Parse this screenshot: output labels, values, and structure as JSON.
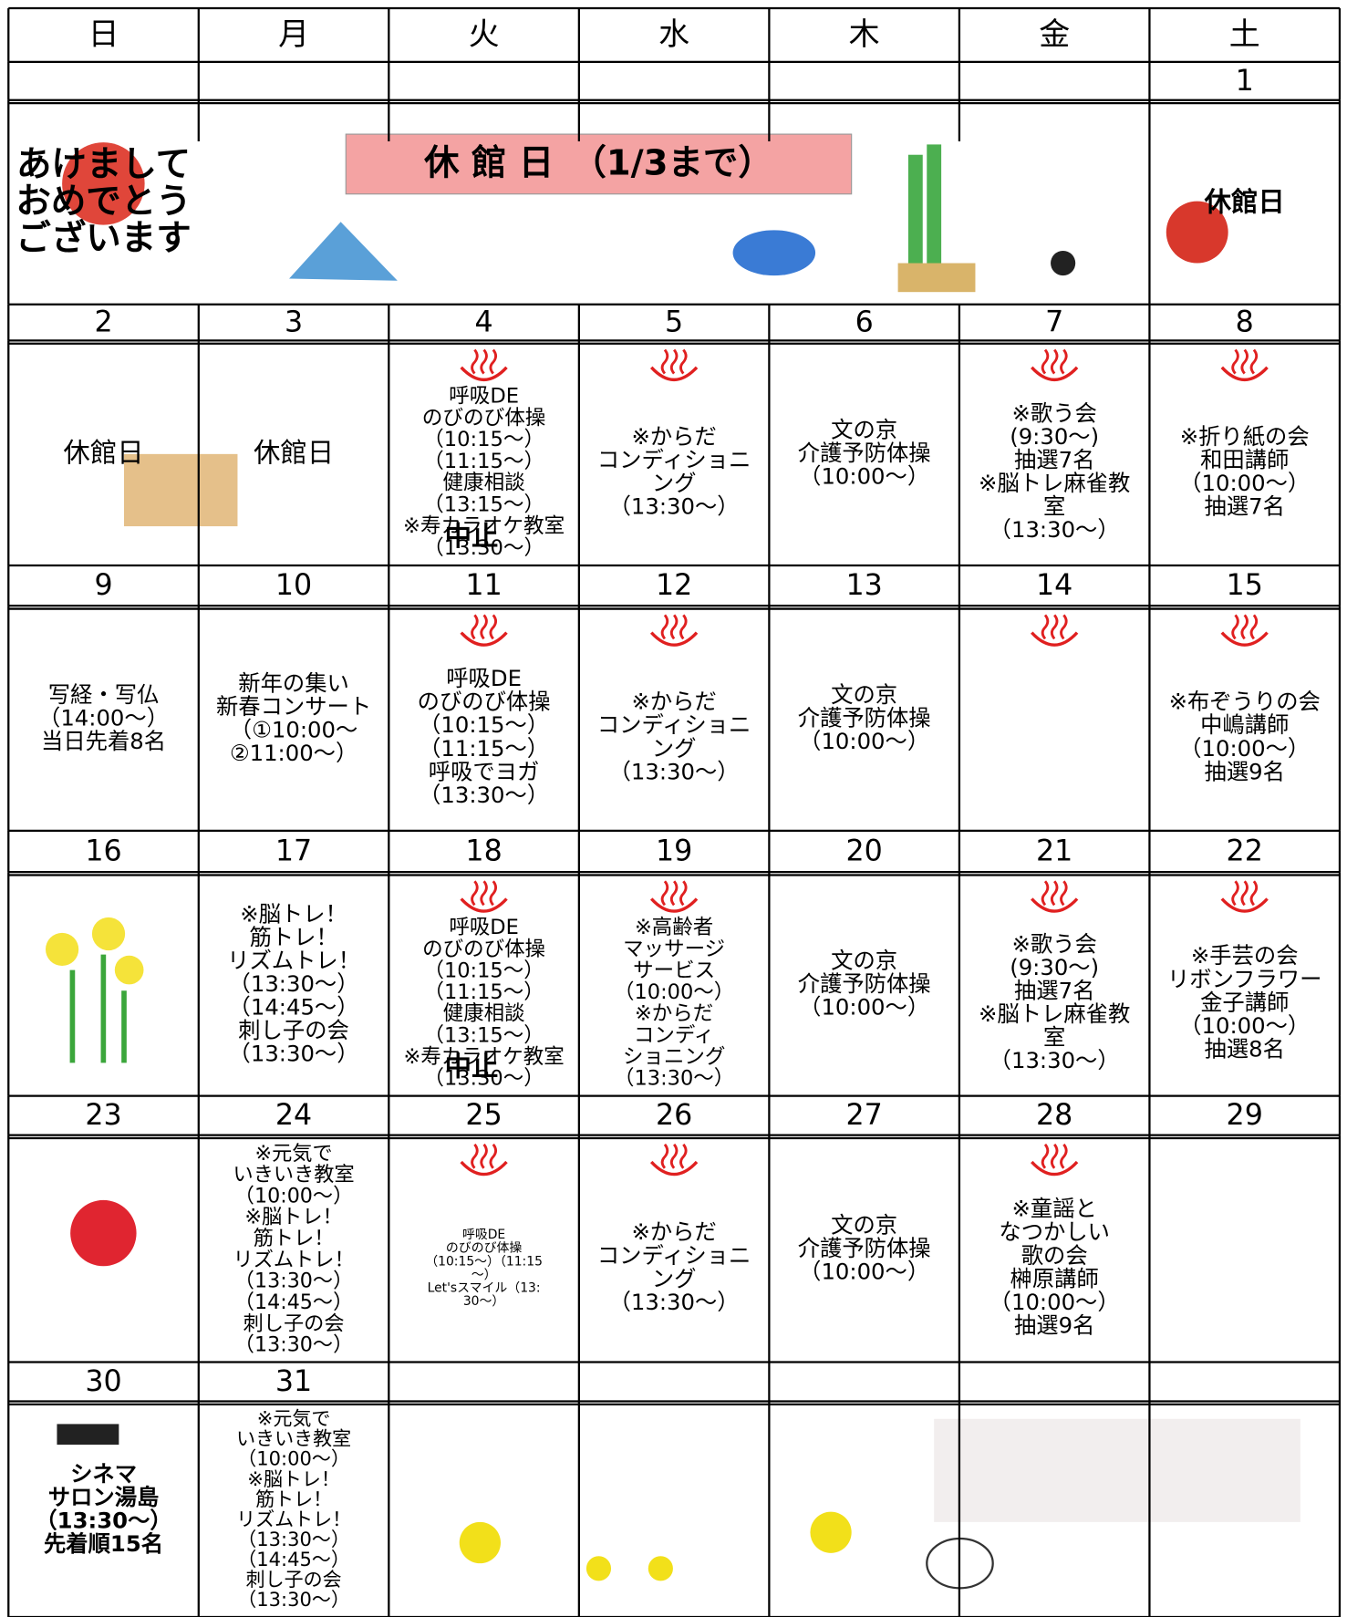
{
  "weekdays": [
    "日",
    "月",
    "火",
    "水",
    "木",
    "金",
    "土"
  ],
  "banner": "休 館 日　（1/3まで）",
  "weeks": [
    {
      "days": [
        {
          "lines": [
            "あけまして",
            "おめでとう",
            "ございます"
          ]
        },
        null,
        null,
        null,
        null,
        null,
        {
          "date": 1,
          "red": true,
          "lines": [
            "休館日"
          ]
        }
      ]
    },
    {
      "days": [
        {
          "date": 2,
          "red": true,
          "lines": [
            "休館日"
          ]
        },
        {
          "date": 3,
          "lines": [
            "休館日"
          ]
        },
        {
          "date": 4,
          "onsen": true,
          "cancel": "中止",
          "lines": [
            "呼吸DE",
            "のびのび体操",
            "（10:15～）",
            "（11:15～）",
            "健康相談",
            "（13:15～）",
            "※寿カラオケ教室",
            "（13:30～）"
          ]
        },
        {
          "date": 5,
          "onsen": true,
          "lines": [
            "※からだ",
            "コンディショニ",
            "ング",
            "（13:30～）"
          ]
        },
        {
          "date": 6,
          "lines": [
            "文の京",
            "介護予防体操",
            "（10:00～）"
          ]
        },
        {
          "date": 7,
          "onsen": true,
          "lines": [
            "※歌う会",
            "(9:30～)",
            "抽選7名",
            "※脳トレ麻雀教",
            "室",
            "（13:30～）"
          ]
        },
        {
          "date": 8,
          "onsen": true,
          "lines": [
            "※折り紙の会",
            "和田講師",
            "（10:00～）",
            {
              "text": "抽選7名",
              "color": "#ff0000"
            }
          ]
        }
      ]
    },
    {
      "days": [
        {
          "date": 9,
          "red": true,
          "lines": [
            "写経・写仏",
            "（14:00～）",
            "当日先着8名"
          ]
        },
        {
          "date": 10,
          "red": true,
          "lines": [
            "新年の集い",
            "新春コンサート",
            "（①10:00～",
            "②11:00～）"
          ]
        },
        {
          "date": 11,
          "onsen": true,
          "lines": [
            "呼吸DE",
            "のびのび体操",
            "（10:15～）",
            "（11:15～）",
            "呼吸でヨガ",
            "（13:30～）"
          ]
        },
        {
          "date": 12,
          "onsen": true,
          "lines": [
            "※からだ",
            "コンディショニ",
            "ング",
            "（13:30～）"
          ]
        },
        {
          "date": 13,
          "lines": [
            "文の京",
            "介護予防体操",
            "（10:00～）"
          ]
        },
        {
          "date": 14,
          "onsen": true,
          "lines": []
        },
        {
          "date": 15,
          "onsen": true,
          "lines": [
            "※布ぞうりの会",
            "中嶋講師",
            "（10:00～）",
            {
              "text": "抽選9名",
              "color": "#ff0000"
            }
          ]
        }
      ]
    },
    {
      "days": [
        {
          "date": 16,
          "red": true,
          "lines": []
        },
        {
          "date": 17,
          "lines": [
            "※脳トレ！",
            "筋トレ！",
            "リズムトレ！",
            "（13:30～）",
            "（14:45～）",
            "刺し子の会",
            "（13:30～）"
          ]
        },
        {
          "date": 18,
          "onsen": true,
          "cancel": "中止",
          "lines": [
            "呼吸DE",
            "のびのび体操",
            "（10:15～）",
            "（11:15～）",
            "健康相談",
            "（13:15～）",
            "※寿カラオケ教室",
            "（13:30～）"
          ]
        },
        {
          "date": 19,
          "onsen": true,
          "lines": [
            "※高齢者",
            "マッサージ",
            "サービス",
            "（10:00～）",
            "※からだ",
            "コンディ",
            "ショニング",
            "（13:30～）"
          ]
        },
        {
          "date": 20,
          "lines": [
            "文の京",
            "介護予防体操",
            "（10:00～）"
          ]
        },
        {
          "date": 21,
          "onsen": true,
          "lines": [
            "※歌う会",
            "(9:30～)",
            "抽選7名",
            "※脳トレ麻雀教",
            "室",
            "（13:30～）"
          ]
        },
        {
          "date": 22,
          "onsen": true,
          "lines": [
            "※手芸の会",
            "リボンフラワー",
            "金子講師",
            "（10:00～）",
            {
              "text": "抽選8名",
              "color": "#ff0000"
            }
          ]
        }
      ]
    },
    {
      "days": [
        {
          "date": 23,
          "red": true,
          "lines": []
        },
        {
          "date": 24,
          "lines": [
            "※元気で",
            "いきいき教室",
            "（10:00～）",
            "※脳トレ！",
            "筋トレ！",
            "リズムトレ！",
            "（13:30～）",
            "（14:45～）",
            "刺し子の会",
            "（13:30～）"
          ]
        },
        {
          "date": 25,
          "onsen": true,
          "lines": [
            "呼吸DE",
            "のびのび体操",
            "（10:15～）（11:15",
            "～）",
            "Let'sスマイル（13:",
            "30～）"
          ]
        },
        {
          "date": 26,
          "onsen": true,
          "lines": [
            "※からだ",
            "コンディショニ",
            "ング",
            "（13:30～）"
          ]
        },
        {
          "date": 27,
          "lines": [
            "文の京",
            "介護予防体操",
            "（10:00～）"
          ]
        },
        {
          "date": 28,
          "onsen": true,
          "lines": [
            "※童謡と",
            "なつかしい",
            "歌の会",
            "榊原講師",
            "（10:00～）",
            "抽選9名"
          ]
        },
        {
          "date": 29,
          "lines": []
        }
      ]
    },
    {
      "days": [
        {
          "date": 30,
          "red": true,
          "bold": true,
          "lines": [
            "シネマ",
            "サロン湯島",
            "（13:30～）",
            "先着順15名"
          ]
        },
        {
          "date": 31,
          "lines": [
            "※元気で",
            "いきいき教室",
            "（10:00～）",
            "※脳トレ！",
            "筋トレ！",
            "リズムトレ！",
            "（13:30～）",
            "（14:45～）",
            "刺し子の会",
            "（13:30～）"
          ]
        },
        null,
        null,
        null,
        null,
        null
      ]
    }
  ]
}
